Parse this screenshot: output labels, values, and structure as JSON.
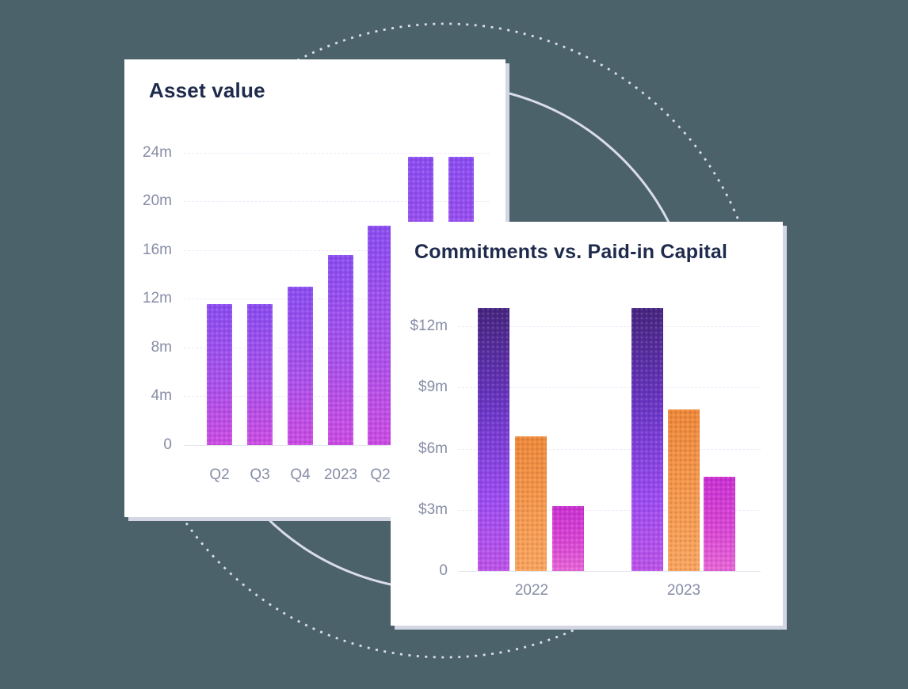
{
  "page": {
    "background_color": "#4b626b",
    "circle_color": "#dadce9",
    "card_color": "#ffffff",
    "card_shadow_color": "#d3d6e4",
    "title_color": "#1f2b4d",
    "tick_color": "#878ca6"
  },
  "chart_data": [
    {
      "type": "bar",
      "title": "Asset value",
      "yticks": [
        "24m",
        "20m",
        "16m",
        "12m",
        "8m",
        "4m",
        "0"
      ],
      "xticks": [
        "Q2",
        "Q3",
        "Q4",
        "2023",
        "Q2"
      ],
      "values": [
        11.6,
        11.6,
        13.0,
        15.6,
        18.0,
        23.7,
        23.7
      ],
      "ylim": [
        0,
        24
      ],
      "grid": "horizontal, dashed, light lilac",
      "legend": "none",
      "bar_gradient": [
        "#8a4df0",
        "#cb4ce2"
      ]
    },
    {
      "type": "bar",
      "title": "Commitments vs. Paid-in Capital",
      "yticks": [
        "$12m",
        "$9m",
        "$6m",
        "$3m",
        "0"
      ],
      "categories": [
        "2022",
        "2023"
      ],
      "series": [
        {
          "name": "purple",
          "values": [
            12.9,
            12.9
          ],
          "gradient": [
            "#45257e",
            "#bc54e8"
          ]
        },
        {
          "name": "orange",
          "values": [
            6.6,
            7.9
          ],
          "gradient": [
            "#ee8838",
            "#f9a55e"
          ]
        },
        {
          "name": "pink",
          "values": [
            3.2,
            4.6
          ],
          "gradient": [
            "#c92fd0",
            "#e765d6"
          ]
        }
      ],
      "ylim": [
        0,
        13.5
      ],
      "grid": "horizontal, dashed, light lilac",
      "legend": "none"
    }
  ]
}
